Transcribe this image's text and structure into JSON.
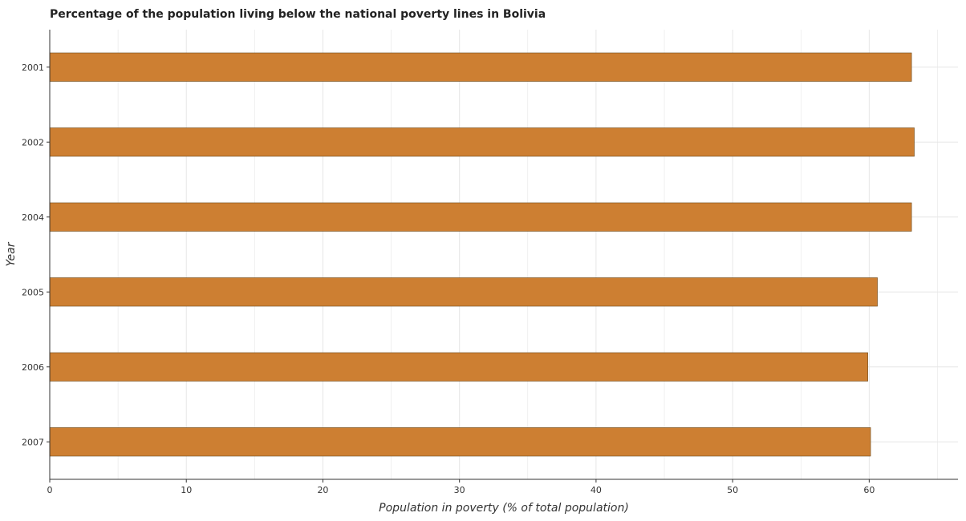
{
  "chart_data": {
    "type": "bar",
    "orientation": "horizontal",
    "title": "Percentage of the population living below the national poverty lines in Bolivia",
    "xlabel": "Population in poverty (% of total population)",
    "ylabel": "Year",
    "categories": [
      "2001",
      "2002",
      "2004",
      "2005",
      "2006",
      "2007"
    ],
    "values": [
      63.1,
      63.3,
      63.1,
      60.6,
      59.9,
      60.1
    ],
    "xlim": [
      0,
      66.5
    ],
    "xticks": [
      0,
      10,
      20,
      30,
      40,
      50,
      60
    ],
    "grid": true,
    "legend": "none",
    "bar_color": "#cd7f32"
  }
}
